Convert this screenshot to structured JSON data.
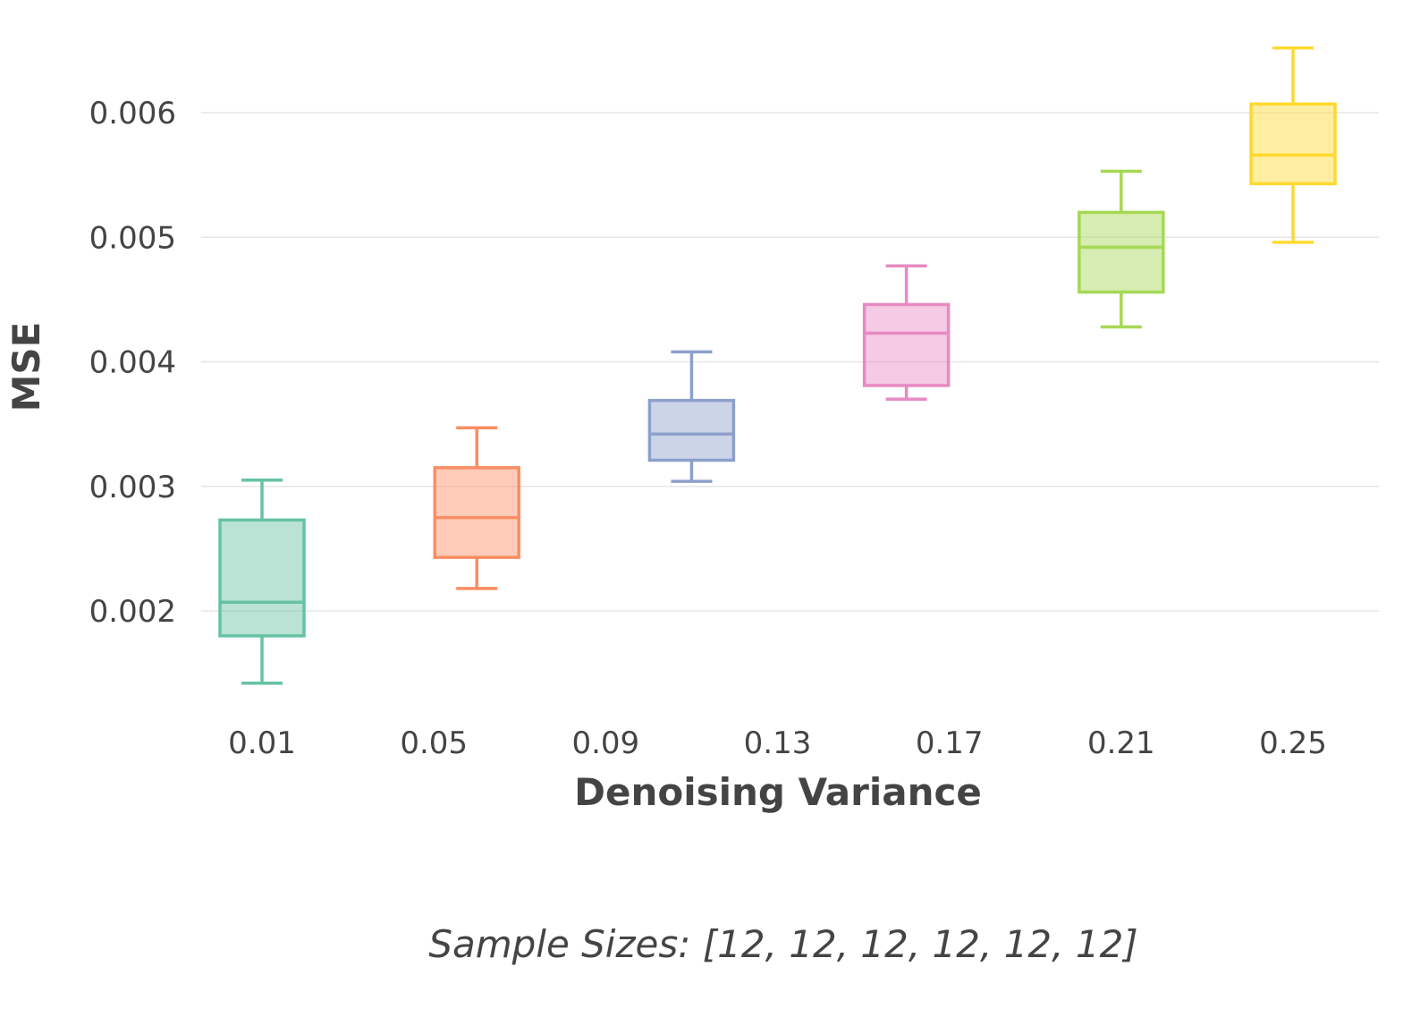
{
  "chart_data": {
    "type": "box",
    "xlabel": "Denoising Variance",
    "ylabel": "MSE",
    "x_tick_labels": [
      "0.01",
      "0.05",
      "0.09",
      "0.13",
      "0.17",
      "0.21",
      "0.25"
    ],
    "y_tick_labels": [
      "0.002",
      "0.003",
      "0.004",
      "0.005",
      "0.006"
    ],
    "y_ticks": [
      0.002,
      0.003,
      0.004,
      0.005,
      0.006
    ],
    "ylim": [
      0.00115,
      0.00665
    ],
    "xlim": [
      -0.005,
      0.28
    ],
    "grid": true,
    "annotation": "Sample Sizes: [12, 12, 12, 12, 12, 12]",
    "series": [
      {
        "x": 0.01,
        "min": 0.00142,
        "q1": 0.0018,
        "median": 0.00207,
        "q3": 0.00273,
        "max": 0.00305,
        "color": "#66c2a5"
      },
      {
        "x": 0.06,
        "min": 0.00218,
        "q1": 0.00243,
        "median": 0.00275,
        "q3": 0.00315,
        "max": 0.00347,
        "color": "#fc8d62"
      },
      {
        "x": 0.11,
        "min": 0.00304,
        "q1": 0.00321,
        "median": 0.00342,
        "q3": 0.00369,
        "max": 0.00408,
        "color": "#8da0cb"
      },
      {
        "x": 0.16,
        "min": 0.0037,
        "q1": 0.00381,
        "median": 0.00423,
        "q3": 0.00446,
        "max": 0.00477,
        "color": "#e78ac3"
      },
      {
        "x": 0.21,
        "min": 0.00428,
        "q1": 0.00456,
        "median": 0.00492,
        "q3": 0.0052,
        "max": 0.00553,
        "color": "#a6d854"
      },
      {
        "x": 0.25,
        "min": 0.00496,
        "q1": 0.00543,
        "median": 0.00566,
        "q3": 0.00607,
        "max": 0.00652,
        "color": "#ffd92f"
      }
    ]
  }
}
